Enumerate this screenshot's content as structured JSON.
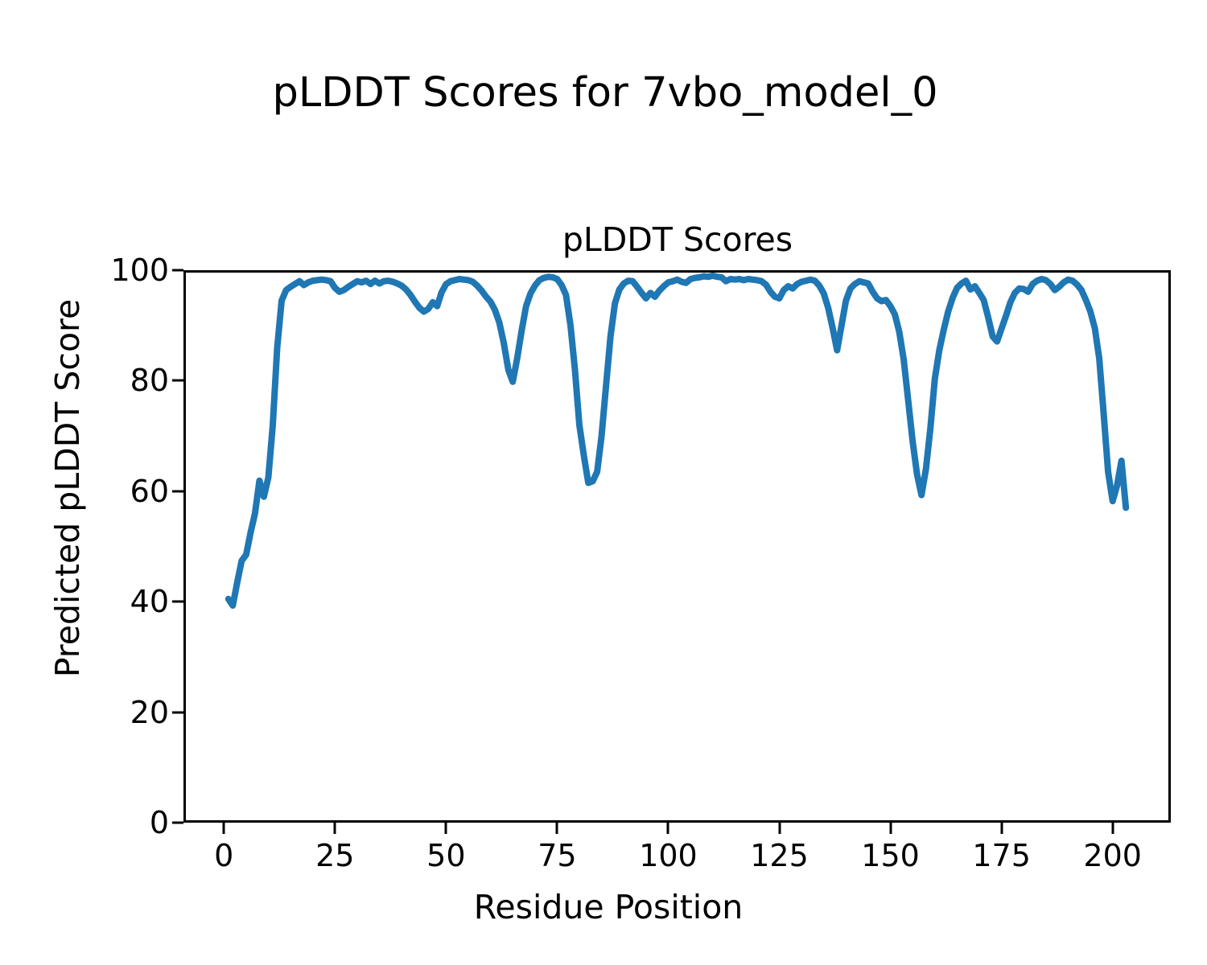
{
  "chart_data": {
    "type": "line",
    "suptitle": "pLDDT Scores for 7vbo_model_0",
    "title": "pLDDT Scores",
    "xlabel": "Residue Position",
    "ylabel": "Predicted pLDDT Score",
    "x_ticks": [
      0,
      25,
      50,
      75,
      100,
      125,
      150,
      175,
      200
    ],
    "y_ticks": [
      0,
      20,
      40,
      60,
      80,
      100
    ],
    "xlim": [
      -9.1,
      213.1
    ],
    "ylim": [
      0,
      100
    ],
    "grid": false,
    "legend": null,
    "line_color": "#1f77b4",
    "axis_color": "#000000",
    "series": [
      {
        "name": "pLDDT",
        "x_start": 1,
        "x_step": 1,
        "values": [
          40.5,
          39.3,
          43.5,
          47.4,
          48.5,
          52.5,
          56.0,
          61.9,
          59.0,
          62.5,
          72.0,
          86.0,
          94.5,
          96.4,
          97.0,
          97.5,
          98.0,
          97.3,
          97.8,
          98.1,
          98.2,
          98.3,
          98.2,
          98.0,
          96.8,
          96.1,
          96.4,
          97.0,
          97.5,
          98.0,
          97.8,
          98.1,
          97.5,
          98.1,
          97.6,
          98.0,
          98.1,
          97.9,
          97.6,
          97.2,
          96.5,
          95.5,
          94.3,
          93.2,
          92.5,
          93.0,
          94.2,
          93.5,
          96.0,
          97.5,
          98.0,
          98.2,
          98.4,
          98.3,
          98.2,
          97.9,
          97.2,
          96.3,
          95.2,
          94.3,
          92.8,
          90.5,
          86.8,
          82.0,
          79.8,
          84.0,
          89.0,
          93.5,
          95.8,
          97.2,
          98.2,
          98.6,
          98.8,
          98.7,
          98.4,
          97.3,
          95.5,
          90.0,
          82.0,
          72.0,
          66.5,
          61.5,
          61.8,
          63.5,
          70.0,
          79.0,
          88.0,
          94.0,
          96.5,
          97.6,
          98.1,
          98.0,
          97.0,
          95.9,
          94.9,
          95.9,
          95.2,
          96.3,
          97.1,
          97.8,
          98.0,
          98.3,
          97.9,
          97.7,
          98.4,
          98.6,
          98.7,
          98.9,
          98.8,
          99.0,
          98.8,
          98.7,
          98.0,
          98.4,
          98.3,
          98.4,
          98.2,
          98.4,
          98.3,
          98.2,
          98.0,
          97.4,
          96.1,
          95.2,
          94.9,
          96.4,
          97.1,
          96.7,
          97.5,
          97.9,
          98.1,
          98.3,
          98.1,
          97.2,
          95.8,
          93.2,
          89.5,
          85.5,
          90.0,
          94.5,
          96.7,
          97.5,
          98.0,
          97.8,
          97.6,
          96.1,
          94.9,
          94.4,
          94.6,
          93.5,
          92.0,
          88.8,
          83.8,
          76.5,
          69.0,
          63.0,
          59.3,
          64.0,
          71.5,
          80.4,
          85.5,
          89.2,
          92.5,
          95.0,
          96.8,
          97.6,
          98.1,
          96.5,
          97.1,
          95.9,
          94.6,
          91.5,
          88.0,
          87.1,
          89.4,
          91.7,
          94.2,
          95.9,
          96.7,
          96.6,
          96.1,
          97.5,
          98.1,
          98.4,
          98.2,
          97.5,
          96.4,
          97.0,
          97.8,
          98.3,
          98.1,
          97.4,
          96.4,
          94.6,
          92.5,
          89.5,
          84.0,
          74.0,
          63.5,
          58.2,
          61.0,
          65.5,
          57.0
        ]
      }
    ]
  }
}
